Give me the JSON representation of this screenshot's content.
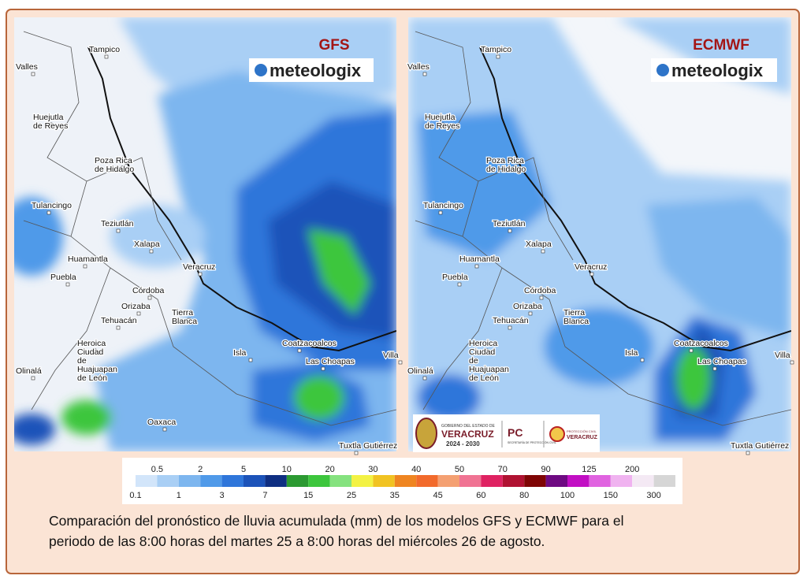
{
  "maps": [
    {
      "model": "GFS",
      "brand": "meteologix"
    },
    {
      "model": "ECMWF",
      "brand": "meteologix"
    }
  ],
  "cities": [
    [
      "Tampico"
    ],
    [
      "Valles"
    ],
    [
      "Huejutla",
      "de Reyes"
    ],
    [
      "Poza Rica",
      "de Hidalgo"
    ],
    [
      "Tulancingo"
    ],
    [
      "Teziutlán"
    ],
    [
      "Xalapa"
    ],
    [
      "Huamantla"
    ],
    [
      "Puebla"
    ],
    [
      "Veracruz"
    ],
    [
      "Córdoba"
    ],
    [
      "Orizaba"
    ],
    [
      "Tehuacán"
    ],
    [
      "Tierra",
      "Blanca"
    ],
    [
      "Heroica",
      "Ciudad",
      "de",
      "Huajuapan",
      "de León"
    ],
    [
      "Coatzacoalcos"
    ],
    [
      "Las Choapas"
    ],
    [
      "Isla"
    ],
    [
      "Villa"
    ],
    [
      "Olinalá"
    ],
    [
      "Oaxaca"
    ],
    [
      "Tuxtla Gutiérrez"
    ]
  ],
  "logo": {
    "line1": "GOBIERNO DEL ESTADO DE",
    "line2": "VERACRUZ",
    "line3": "2024 - 2030",
    "pc": "PC",
    "pc_sub": "SECRETARÍA DE PROTECCIÓN CIVIL",
    "pc2": "PROTECCIÓN CIVIL",
    "pc3": "VERACRUZ"
  },
  "legend": {
    "top": [
      0.5,
      2,
      5,
      10,
      20,
      30,
      40,
      50,
      70,
      90,
      125,
      200
    ],
    "bottom": [
      0.1,
      1,
      3,
      7,
      15,
      25,
      35,
      45,
      60,
      80,
      100,
      150,
      300
    ],
    "colors": [
      "#d2e5fa",
      "#a9cff5",
      "#7db6ef",
      "#509ae9",
      "#2f76da",
      "#1c53b9",
      "#0f2f82",
      "#2c9a32",
      "#3dc63d",
      "#85e27f",
      "#f3f244",
      "#f1c322",
      "#ef8521",
      "#f26a2c",
      "#f4a072",
      "#f07393",
      "#df2262",
      "#b01232",
      "#7f0505",
      "#6e0a82",
      "#c20fc4",
      "#e063e0",
      "#f0b3f0",
      "#f4e9f4",
      "#d6d6d6"
    ]
  },
  "caption": {
    "line1": "Comparación del pronóstico de lluvia acumulada (mm) de los modelos GFS y ECMWF para el",
    "line2": "periodo de las 8:00 horas del martes 25 a 8:00 horas del miércoles 26 de agosto."
  }
}
